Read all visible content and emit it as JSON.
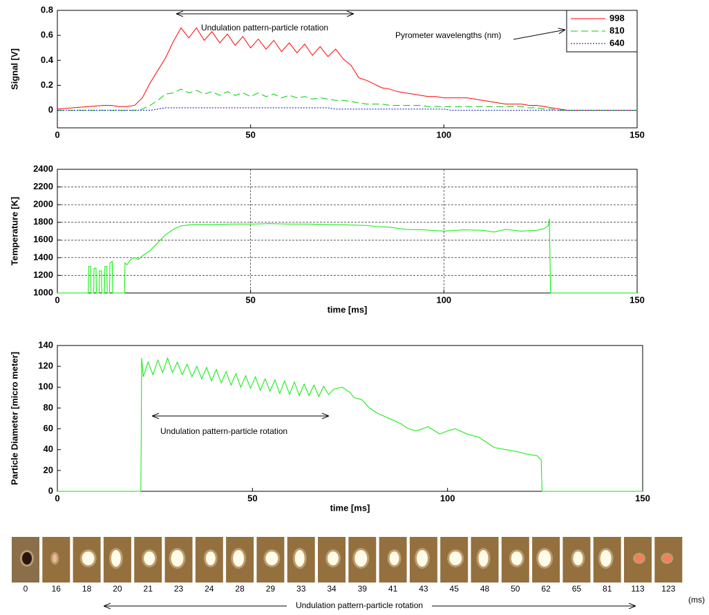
{
  "chart_data": [
    {
      "type": "line",
      "ylabel": "Signal [V]",
      "annotations": [
        "Undulation pattern-particle rotation",
        "Pyrometer wavelengths (nm)"
      ],
      "xlim": [
        0,
        150
      ],
      "xticks": [
        0,
        50,
        100,
        150
      ],
      "ylim": [
        -0.14,
        0.8
      ],
      "yticks": [
        0,
        0.2,
        0.4,
        0.6,
        0.8
      ],
      "grid": false,
      "legend": "upper right",
      "x": [
        0,
        2,
        4,
        6,
        8,
        10,
        12,
        14,
        16,
        18,
        20,
        22,
        24,
        26,
        28,
        30,
        32,
        34,
        36,
        38,
        40,
        42,
        44,
        46,
        48,
        50,
        52,
        54,
        56,
        58,
        60,
        62,
        64,
        66,
        68,
        70,
        72,
        74,
        76,
        78,
        80,
        82,
        84,
        86,
        88,
        90,
        92,
        94,
        96,
        98,
        100,
        102,
        104,
        106,
        108,
        110,
        112,
        114,
        116,
        118,
        120,
        122,
        124,
        126,
        128,
        130,
        132,
        134,
        136,
        138,
        140,
        142,
        144,
        146,
        148,
        150
      ],
      "series": [
        {
          "name": "998",
          "color": "#ff0000",
          "line_style": "solid",
          "values": [
            0.01,
            0.015,
            0.02,
            0.025,
            0.03,
            0.035,
            0.04,
            0.04,
            0.03,
            0.03,
            0.04,
            0.1,
            0.22,
            0.32,
            0.42,
            0.55,
            0.66,
            0.58,
            0.66,
            0.56,
            0.63,
            0.54,
            0.61,
            0.52,
            0.59,
            0.5,
            0.57,
            0.49,
            0.56,
            0.47,
            0.54,
            0.46,
            0.53,
            0.44,
            0.51,
            0.43,
            0.49,
            0.41,
            0.36,
            0.26,
            0.24,
            0.21,
            0.18,
            0.17,
            0.15,
            0.14,
            0.13,
            0.12,
            0.11,
            0.11,
            0.1,
            0.1,
            0.1,
            0.1,
            0.09,
            0.08,
            0.07,
            0.06,
            0.05,
            0.05,
            0.05,
            0.04,
            0.04,
            0.03,
            0.02,
            0.01,
            0,
            0,
            0,
            0,
            0,
            0,
            0,
            0,
            0,
            0
          ]
        },
        {
          "name": "810",
          "color": "#00cc00",
          "line_style": "dashed",
          "values": [
            0,
            0,
            0,
            0,
            0,
            0,
            0,
            0,
            0,
            0,
            0,
            0.01,
            0.04,
            0.08,
            0.13,
            0.14,
            0.17,
            0.14,
            0.16,
            0.13,
            0.15,
            0.12,
            0.15,
            0.12,
            0.14,
            0.11,
            0.14,
            0.11,
            0.13,
            0.1,
            0.12,
            0.1,
            0.11,
            0.09,
            0.1,
            0.09,
            0.08,
            0.08,
            0.07,
            0.06,
            0.05,
            0.05,
            0.05,
            0.04,
            0.04,
            0.04,
            0.04,
            0.04,
            0.03,
            0.03,
            0.03,
            0.03,
            0.03,
            0.03,
            0.03,
            0.03,
            0.03,
            0.03,
            0.03,
            0.03,
            0.03,
            0.02,
            0.02,
            0.01,
            0.01,
            0,
            0,
            0,
            0,
            0,
            0,
            0,
            0,
            0,
            0,
            0
          ]
        },
        {
          "name": "640",
          "color": "#0000cc",
          "line_style": "dotted",
          "values": [
            0,
            0,
            0,
            0,
            0,
            0,
            0,
            0,
            0,
            0,
            0,
            0,
            0,
            0.01,
            0.02,
            0.02,
            0.02,
            0.02,
            0.02,
            0.02,
            0.02,
            0.02,
            0.02,
            0.02,
            0.02,
            0.02,
            0.02,
            0.02,
            0.02,
            0.02,
            0.02,
            0.02,
            0.02,
            0.02,
            0.02,
            0.02,
            0.01,
            0.01,
            0.01,
            0.01,
            0.01,
            0.01,
            0.01,
            0.01,
            0.01,
            0.01,
            0.01,
            0.01,
            0.01,
            0.01,
            0.01,
            0,
            0,
            0,
            0,
            0,
            0,
            0,
            0,
            0,
            0,
            0,
            0,
            0,
            0,
            0,
            0,
            0,
            0,
            0,
            0,
            0,
            0,
            0,
            0,
            0
          ]
        }
      ]
    },
    {
      "type": "line",
      "ylabel": "Temperature [K]",
      "xlabel": "time [ms]",
      "xlim": [
        0,
        150
      ],
      "xticks": [
        0,
        50,
        100,
        150
      ],
      "ylim": [
        1000,
        2400
      ],
      "yticks": [
        1000,
        1200,
        1400,
        1600,
        1800,
        2000,
        2200,
        2400
      ],
      "grid": true,
      "color": "#00ee00",
      "x": [
        0,
        8,
        8.1,
        8.6,
        8.7,
        9.4,
        9.5,
        10,
        10.1,
        10.8,
        10.9,
        11.4,
        11.5,
        12.2,
        12.3,
        12.8,
        12.9,
        13.5,
        13.6,
        14.2,
        14.3,
        17.4,
        17.5,
        18,
        19,
        20,
        21,
        22,
        24,
        26,
        28,
        30,
        32,
        35,
        40,
        45,
        50,
        55,
        60,
        65,
        70,
        75,
        80,
        83,
        86,
        90,
        95,
        100,
        105,
        110,
        113,
        116,
        120,
        124,
        126,
        127,
        127.3,
        127.6,
        150
      ],
      "values": [
        1000,
        1000,
        1300,
        1300,
        1000,
        1000,
        1280,
        1280,
        1000,
        1000,
        1250,
        1250,
        1000,
        1000,
        1300,
        1300,
        1000,
        1000,
        1340,
        1360,
        1000,
        1000,
        1340,
        1320,
        1380,
        1400,
        1380,
        1420,
        1480,
        1570,
        1660,
        1720,
        1760,
        1775,
        1775,
        1780,
        1780,
        1785,
        1780,
        1780,
        1775,
        1770,
        1765,
        1750,
        1745,
        1720,
        1715,
        1700,
        1715,
        1710,
        1690,
        1720,
        1700,
        1710,
        1730,
        1760,
        1840,
        1000,
        1000
      ]
    },
    {
      "type": "line",
      "ylabel": "Particle Diameter [micro meter]",
      "xlabel": "time [ms]",
      "annotations": [
        "Undulation pattern-particle rotation"
      ],
      "xlim": [
        0,
        150
      ],
      "xticks": [
        0,
        50,
        100,
        150
      ],
      "ylim": [
        0,
        140
      ],
      "yticks": [
        0,
        20,
        40,
        60,
        80,
        100,
        120,
        140
      ],
      "grid": false,
      "color": "#00ee00",
      "x": [
        0,
        21.4,
        21.5,
        21.6,
        22,
        23.25,
        24.5,
        25.75,
        27,
        28.25,
        29.5,
        30.75,
        32,
        33.25,
        34.5,
        35.75,
        37,
        38.25,
        39.5,
        40.75,
        42,
        43.25,
        44.5,
        45.75,
        47,
        48.25,
        49.5,
        50.75,
        52,
        53.25,
        54.5,
        55.75,
        57,
        58.25,
        59.5,
        60.75,
        62,
        63.25,
        64.5,
        65.75,
        67,
        68.25,
        69.5,
        70.75,
        73,
        75,
        76,
        78,
        80,
        82,
        85,
        88,
        90,
        92,
        95,
        98,
        100,
        102,
        105,
        108,
        110,
        112,
        115,
        118,
        120,
        123,
        124,
        124.2,
        150
      ],
      "values": [
        0,
        0,
        60,
        128,
        110,
        124,
        112,
        126,
        114,
        128,
        114,
        124,
        112,
        122,
        110,
        120,
        108,
        119,
        106,
        117,
        104,
        115,
        102,
        113,
        100,
        111,
        99,
        110,
        97,
        108,
        96,
        107,
        94,
        106,
        93,
        105,
        92,
        103,
        92,
        102,
        91,
        101,
        93,
        98,
        100,
        95,
        90,
        88,
        80,
        75,
        70,
        65,
        60,
        58,
        62,
        55,
        58,
        60,
        55,
        52,
        47,
        42,
        40,
        38,
        36,
        34,
        30,
        0,
        0
      ]
    }
  ],
  "image_strip": {
    "times": [
      "0",
      "16",
      "18",
      "20",
      "21",
      "23",
      "24",
      "28",
      "29",
      "33",
      "34",
      "39",
      "41",
      "43",
      "45",
      "48",
      "50",
      "62",
      "65",
      "81",
      "113",
      "123"
    ],
    "unit": "(ms)",
    "annotation": "Undulation pattern-particle rotation"
  }
}
